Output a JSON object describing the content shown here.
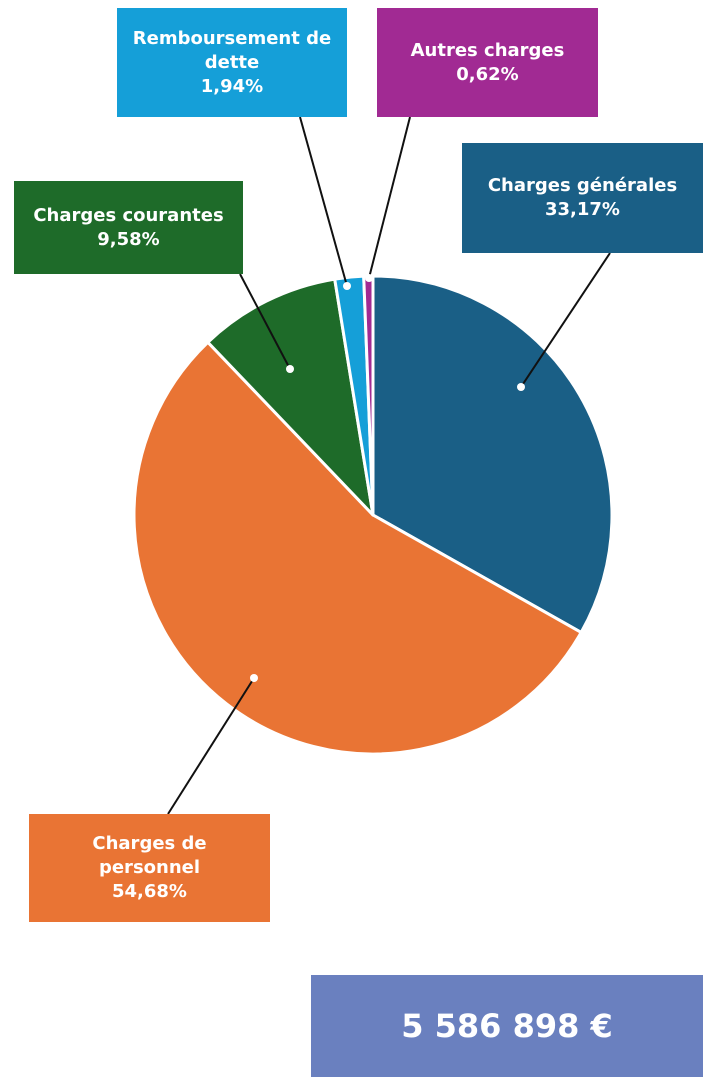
{
  "chart_data": {
    "type": "pie",
    "categories": [
      "Charges générales",
      "Charges de personnel",
      "Charges courantes",
      "Remboursement de dette",
      "Autres charges"
    ],
    "values": [
      33.17,
      54.68,
      9.58,
      1.94,
      0.62
    ],
    "value_labels": [
      "33,17%",
      "54,68%",
      "9,58%",
      "1,94%",
      "0,62%"
    ],
    "colors": [
      "#1a5f86",
      "#e97434",
      "#1e6b29",
      "#159fd8",
      "#a12a93"
    ],
    "total": "5 586 898 €"
  }
}
